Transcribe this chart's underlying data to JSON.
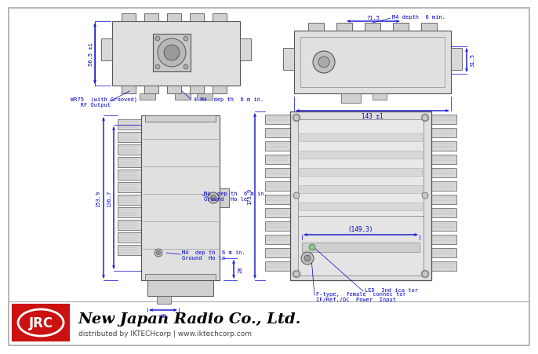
{
  "bg_color": "#ffffff",
  "gc": "#555555",
  "dc": "#0000cc",
  "jrc_red": "#cc1111",
  "annotations": {
    "top_label1": "M4 depth  6 min.",
    "top_dim1": "71.5",
    "top_dim2": "31.5",
    "top_width": "143 ±1",
    "wr75_line1": "WR75  (with Grooved)",
    "wr75_line2": "   RF Output",
    "four_m4": "4-M4  dep th  6 m in.",
    "height1": "153.9",
    "height2": "136.7",
    "height3": "175.9",
    "width1": "56.5 ±1",
    "dim28": "28",
    "dim40": "40",
    "m4_ground1_l1": "M4  dep th  6 m in.",
    "m4_ground1_l2": "Ground  Ho le",
    "m4_ground2_l1": "M4  dep th  6 m in.",
    "m4_ground2_l2": "Ground  Ho le",
    "dim_149": "(149.3)",
    "led": "LED  Ind ica tor",
    "f_type_l1": "F-type,  female  connec tor",
    "f_type_l2": "IF/Ref./DC  Power  Input",
    "company": "New Japan Radio Co., Ltd.",
    "distributor": "distributed by IKTECHcorp | www.iktechcorp.com"
  }
}
